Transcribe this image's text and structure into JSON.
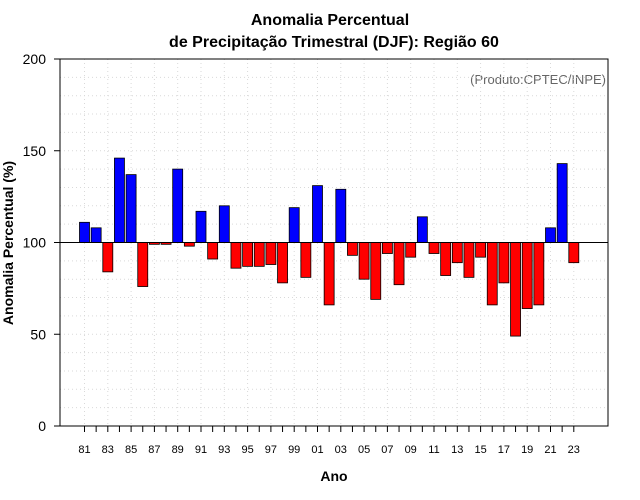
{
  "chart_data": {
    "type": "bar",
    "title": [
      "Anomalia Percentual",
      "de Precipitação Trimestral (DJF): Região 60"
    ],
    "xlabel": "Ano",
    "ylabel": "Anomalia Percentual (%)",
    "credit": "(Produto:CPTEC/INPE)",
    "baseline": 100,
    "ylim": [
      0,
      200
    ],
    "yticks": [
      0,
      50,
      100,
      150,
      200
    ],
    "xtick_labels": [
      "81",
      "83",
      "85",
      "87",
      "89",
      "91",
      "93",
      "95",
      "97",
      "99",
      "01",
      "03",
      "05",
      "07",
      "09",
      "11",
      "13",
      "15",
      "17",
      "19",
      "21",
      "23"
    ],
    "grid": true,
    "colors": {
      "above": "#0000ff",
      "below": "#ff0000",
      "outline": "#000000",
      "grid": "#d9d9d9"
    },
    "categories": [
      "1981",
      "1982",
      "1983",
      "1984",
      "1985",
      "1986",
      "1987",
      "1988",
      "1989",
      "1990",
      "1991",
      "1992",
      "1993",
      "1994",
      "1995",
      "1996",
      "1997",
      "1998",
      "1999",
      "2000",
      "2001",
      "2002",
      "2003",
      "2004",
      "2005",
      "2006",
      "2007",
      "2008",
      "2009",
      "2010",
      "2011",
      "2012",
      "2013",
      "2014",
      "2015",
      "2016",
      "2017",
      "2018",
      "2019",
      "2020",
      "2021",
      "2022",
      "2023"
    ],
    "values": [
      111,
      108,
      84,
      146,
      137,
      76,
      99,
      99,
      140,
      98,
      117,
      91,
      120,
      86,
      87,
      87,
      88,
      78,
      119,
      81,
      131,
      66,
      129,
      93,
      80,
      69,
      94,
      77,
      92,
      114,
      94,
      82,
      89,
      81,
      92,
      66,
      78,
      49,
      64,
      66,
      108,
      143,
      89
    ]
  }
}
